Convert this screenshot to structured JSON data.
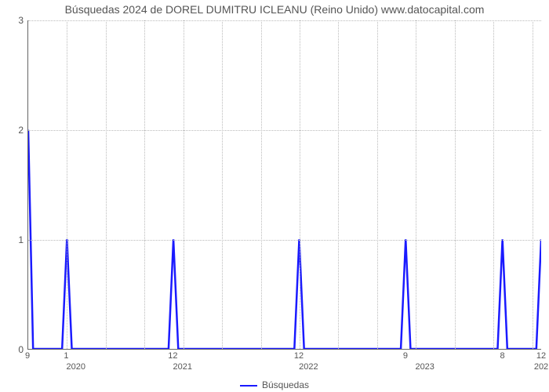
{
  "chart": {
    "type": "line",
    "title": "Búsquedas 2024 de DOREL DUMITRU ICLEANU (Reino Unido) www.datocapital.com",
    "title_fontsize": 14,
    "title_color": "#555555",
    "background_color": "#ffffff",
    "grid_color": "#bbbbbb",
    "axis_color": "#666666",
    "series_color": "#1a1aff",
    "line_width": 2.5,
    "ylim": [
      0,
      3
    ],
    "ytick_step": 1,
    "yticks": [
      0,
      1,
      2,
      3
    ],
    "x_index_range": [
      0,
      53
    ],
    "x_ticks_minor": [
      {
        "x": 0,
        "label": "9"
      },
      {
        "x": 4,
        "label": "1"
      },
      {
        "x": 15,
        "label": "12"
      },
      {
        "x": 28,
        "label": "12"
      },
      {
        "x": 39,
        "label": "9"
      },
      {
        "x": 49,
        "label": "8"
      },
      {
        "x": 53,
        "label": "12"
      }
    ],
    "x_ticks_year": [
      {
        "x": 5,
        "label": "2020"
      },
      {
        "x": 16,
        "label": "2021"
      },
      {
        "x": 29,
        "label": "2022"
      },
      {
        "x": 41,
        "label": "2023"
      },
      {
        "x": 53,
        "label": "202"
      }
    ],
    "grid_v_positions": [
      0,
      4,
      8,
      12,
      16,
      20,
      24,
      28,
      32,
      36,
      40,
      44,
      48,
      52
    ],
    "data": [
      {
        "x": 0,
        "y": 2
      },
      {
        "x": 0.5,
        "y": 0
      },
      {
        "x": 3.5,
        "y": 0
      },
      {
        "x": 4,
        "y": 1
      },
      {
        "x": 4.5,
        "y": 0
      },
      {
        "x": 14.5,
        "y": 0
      },
      {
        "x": 15,
        "y": 1
      },
      {
        "x": 15.5,
        "y": 0
      },
      {
        "x": 27.5,
        "y": 0
      },
      {
        "x": 28,
        "y": 1
      },
      {
        "x": 28.5,
        "y": 0
      },
      {
        "x": 38.5,
        "y": 0
      },
      {
        "x": 39,
        "y": 1
      },
      {
        "x": 39.5,
        "y": 0
      },
      {
        "x": 48.5,
        "y": 0
      },
      {
        "x": 49,
        "y": 1
      },
      {
        "x": 49.5,
        "y": 0
      },
      {
        "x": 52.5,
        "y": 0
      },
      {
        "x": 53,
        "y": 1
      }
    ],
    "legend_label": "Búsquedas"
  }
}
